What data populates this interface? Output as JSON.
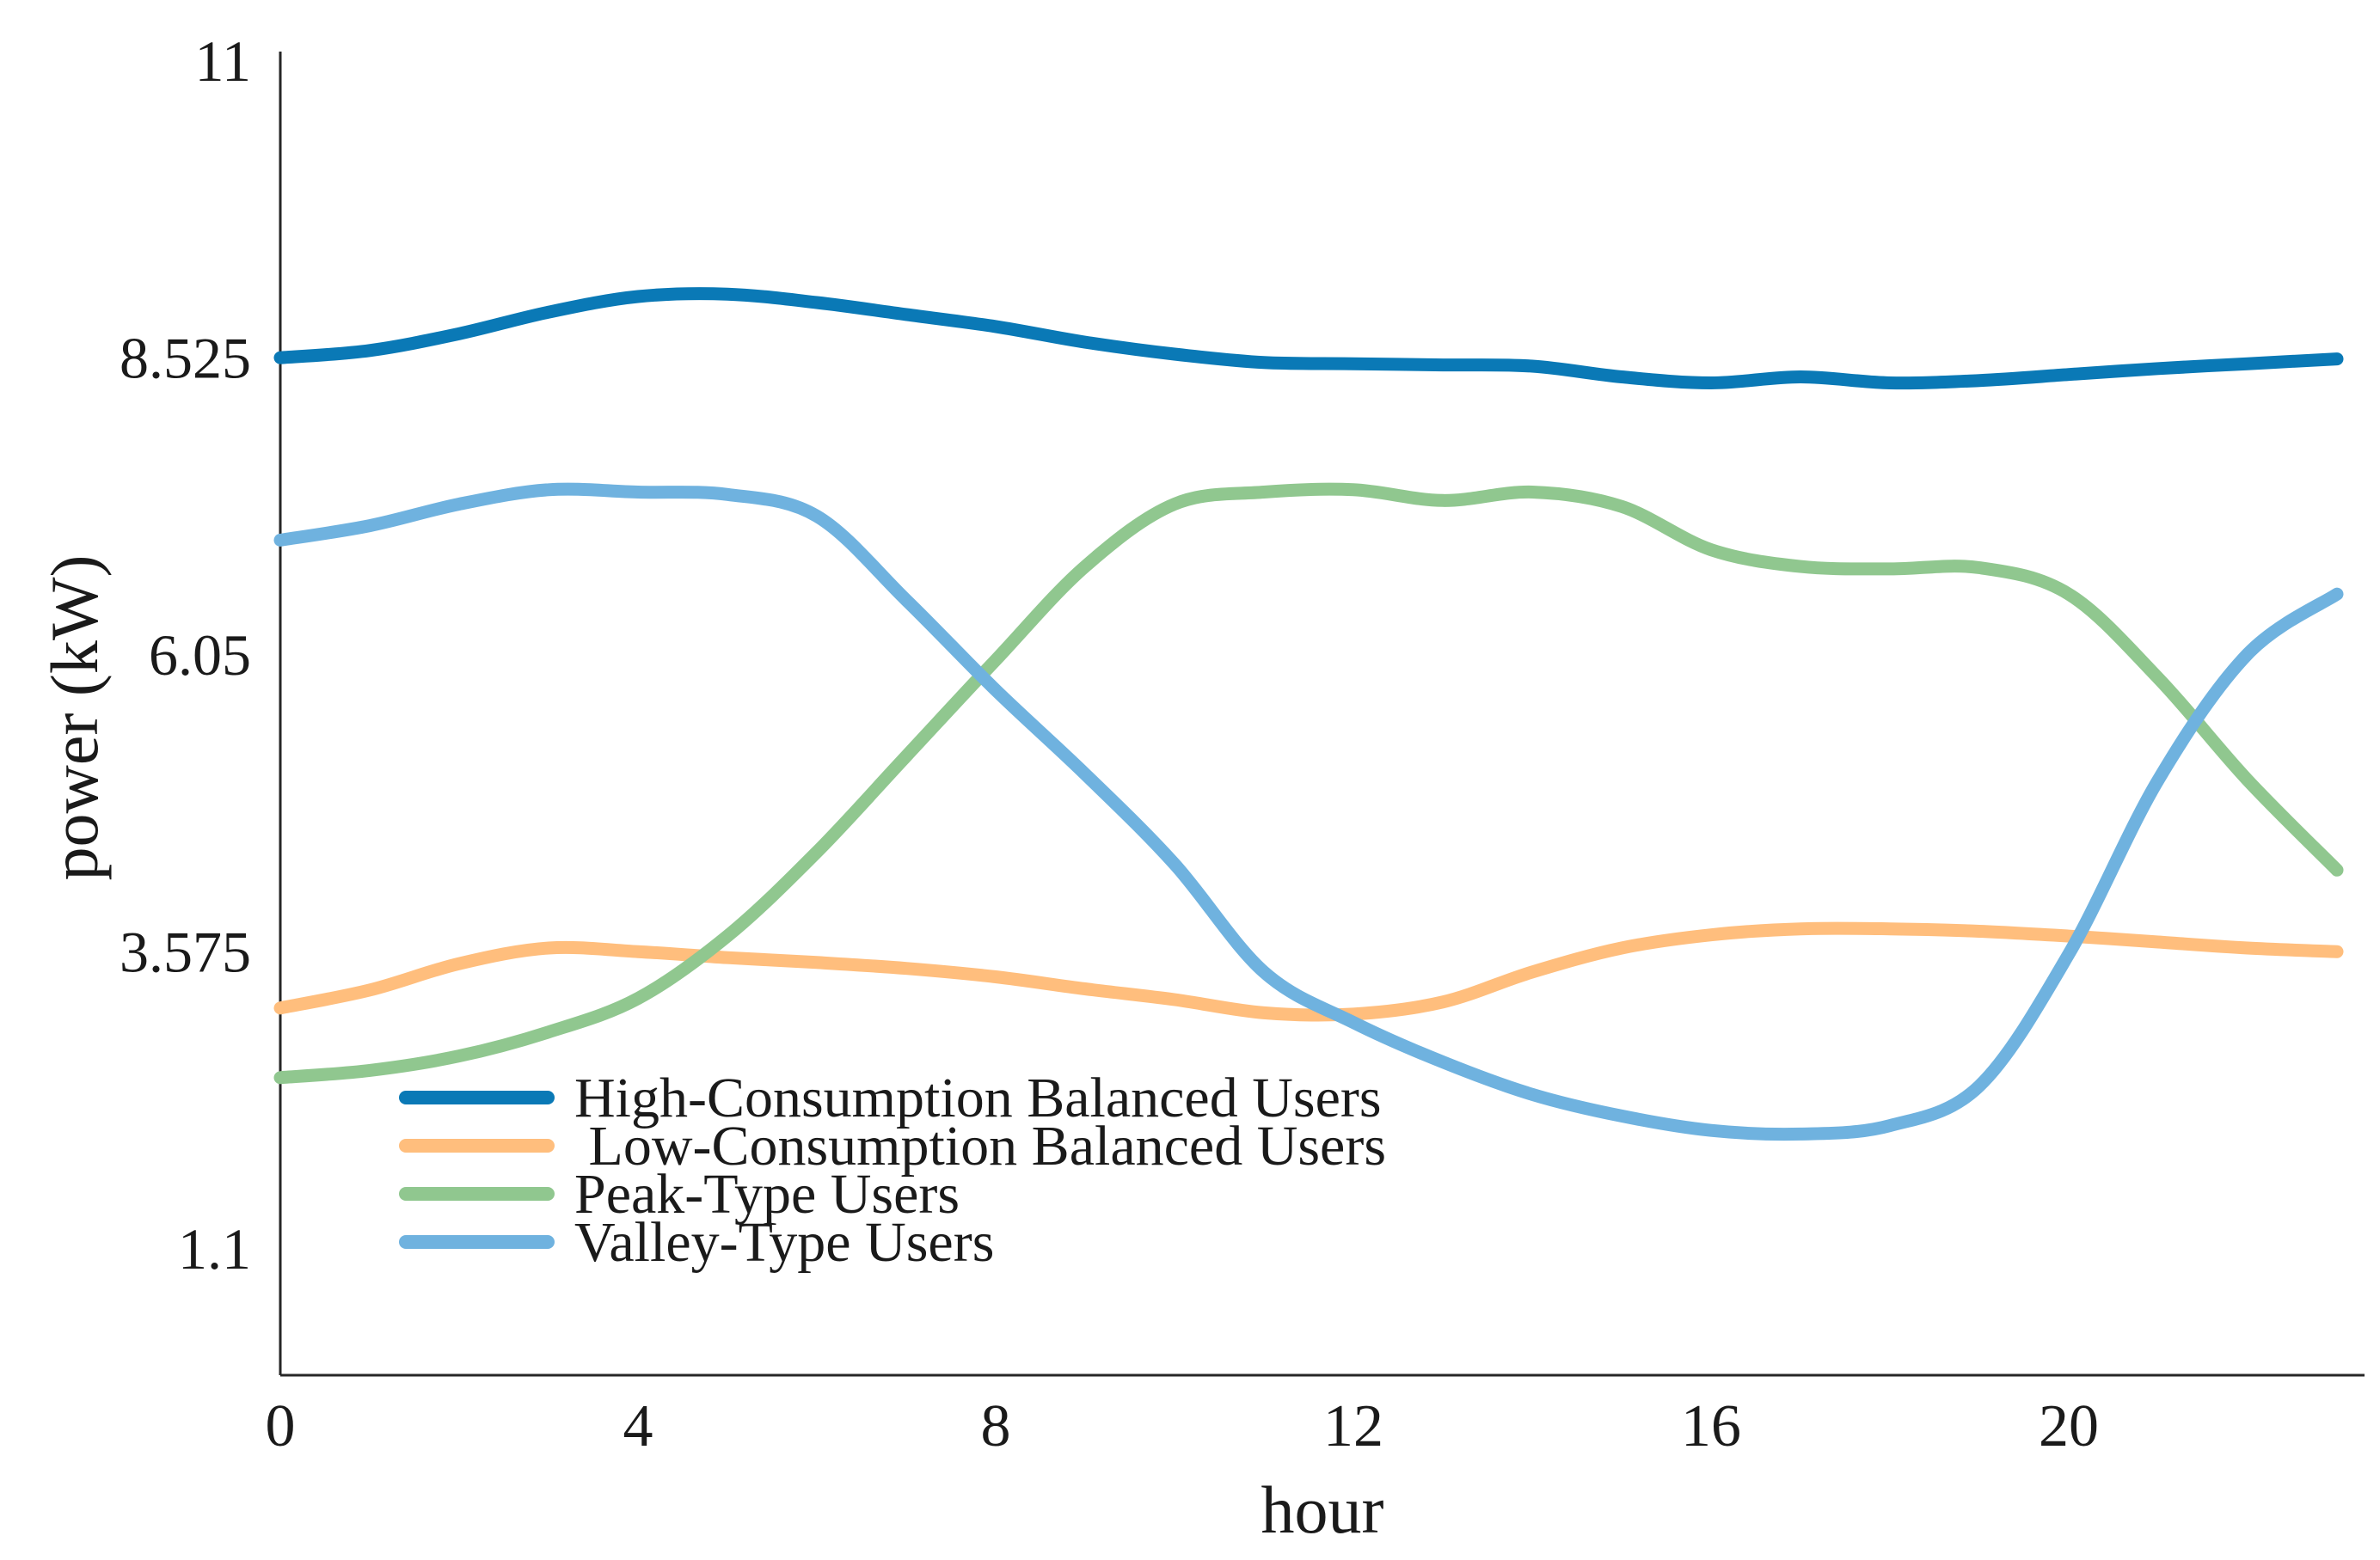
{
  "chart_data": {
    "type": "line",
    "title": "",
    "xlabel": "hour",
    "ylabel": "power (kW)",
    "x": [
      0,
      1,
      2,
      3,
      4,
      5,
      6,
      7,
      8,
      9,
      10,
      11,
      12,
      13,
      14,
      15,
      16,
      17,
      18,
      19,
      20,
      21,
      22,
      23
    ],
    "series": [
      {
        "name": "High-Consumption Balanced Users",
        "color": "#0a79b6",
        "values": [
          8.52,
          8.58,
          8.72,
          8.9,
          9.03,
          9.05,
          8.98,
          8.88,
          8.78,
          8.65,
          8.55,
          8.48,
          8.47,
          8.46,
          8.45,
          8.36,
          8.31,
          8.36,
          8.31,
          8.33,
          8.38,
          8.43,
          8.47,
          8.51
        ]
      },
      {
        "name": " Low-Consumption Balanced Users",
        "color": "#ffbe7d",
        "values": [
          3.1,
          3.25,
          3.47,
          3.6,
          3.57,
          3.52,
          3.48,
          3.43,
          3.36,
          3.26,
          3.17,
          3.06,
          3.05,
          3.15,
          3.4,
          3.6,
          3.71,
          3.76,
          3.76,
          3.74,
          3.7,
          3.65,
          3.6,
          3.57
        ]
      },
      {
        "name": "Peak-Type Users",
        "color": "#90c78f",
        "values": [
          2.52,
          2.58,
          2.7,
          2.9,
          3.18,
          3.7,
          4.4,
          5.2,
          6.0,
          6.78,
          7.3,
          7.4,
          7.42,
          7.33,
          7.4,
          7.28,
          6.92,
          6.78,
          6.76,
          6.77,
          6.55,
          5.85,
          5.0,
          4.25
        ]
      },
      {
        "name": "Valley-Type Users",
        "color": "#6fb2df",
        "values": [
          7.0,
          7.12,
          7.3,
          7.42,
          7.4,
          7.38,
          7.2,
          6.5,
          5.75,
          5.05,
          4.3,
          3.4,
          2.98,
          2.65,
          2.38,
          2.2,
          2.08,
          2.05,
          2.12,
          2.45,
          3.55,
          5.0,
          6.05,
          6.55
        ]
      }
    ],
    "xticks": [
      0,
      4,
      8,
      12,
      16,
      20
    ],
    "xtick_labels": [
      "0",
      "4",
      "8",
      "12",
      "16",
      "20"
    ],
    "yticks": [
      11,
      8.525,
      6.05,
      3.575,
      1.1
    ],
    "ytick_labels": [
      "11",
      "8.525",
      "6.05",
      "3.575",
      "1.1"
    ],
    "xlim": [
      0,
      23.5
    ],
    "ylim": [
      0,
      11.1
    ],
    "grid": false,
    "legend_position": "lower left",
    "axis_color": "#262626",
    "text_color": "#1a1a1a"
  }
}
